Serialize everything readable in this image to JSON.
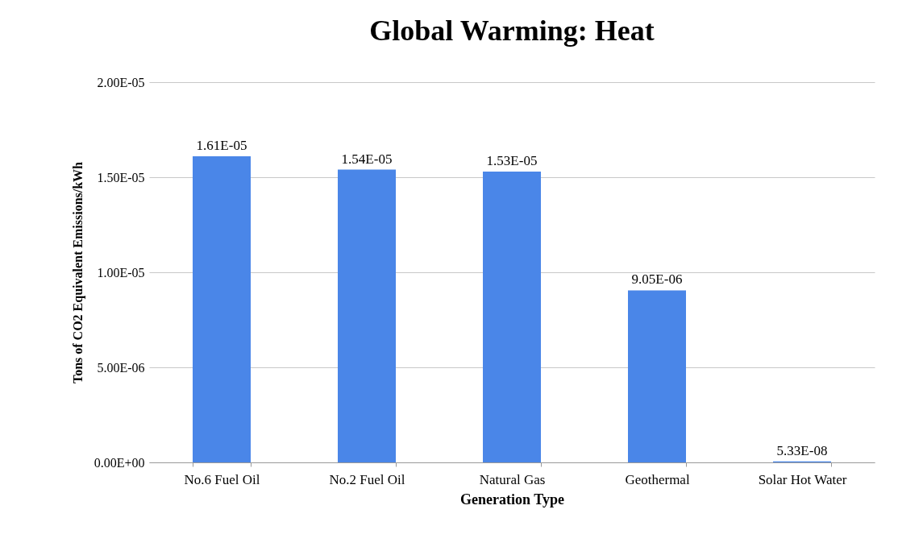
{
  "chart_data": {
    "type": "bar",
    "title": "Global Warming: Heat",
    "xlabel": "Generation Type",
    "ylabel": "Tons of CO2 Equivalent Emissions/kWh",
    "categories": [
      "No.6 Fuel Oil",
      "No.2 Fuel Oil",
      "Natural Gas",
      "Geothermal",
      "Solar Hot Water"
    ],
    "values": [
      1.61e-05,
      1.54e-05,
      1.53e-05,
      9.05e-06,
      5.33e-08
    ],
    "value_labels": [
      "1.61E-05",
      "1.54E-05",
      "1.53E-05",
      "9.05E-06",
      "5.33E-08"
    ],
    "color": "#4a86e8",
    "ylim": [
      0,
      2e-05
    ],
    "yticks": [
      {
        "value": 0,
        "label": "0.00E+00"
      },
      {
        "value": 5e-06,
        "label": "5.00E-06"
      },
      {
        "value": 1e-05,
        "label": "1.00E-05"
      },
      {
        "value": 1.5e-05,
        "label": "1.50E-05"
      },
      {
        "value": 2e-05,
        "label": "2.00E-05"
      }
    ],
    "grid": "y"
  }
}
